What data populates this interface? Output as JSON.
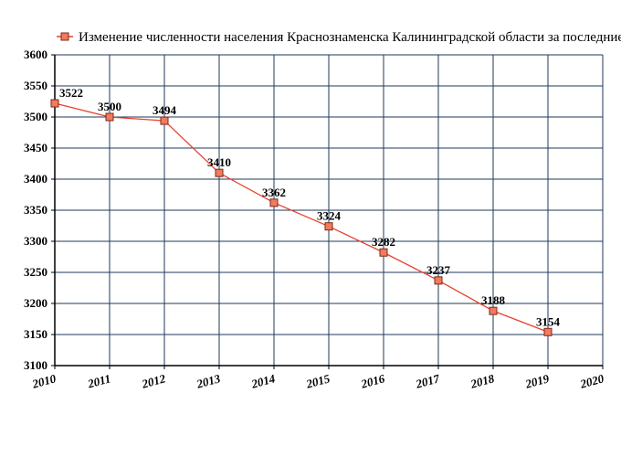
{
  "chart_data": {
    "type": "line",
    "legend": "Изменение численности населения Краснознаменска Калининградской области за последние",
    "legend_position": "top",
    "x": [
      "2010",
      "2011",
      "2012",
      "2013",
      "2014",
      "2015",
      "2016",
      "2017",
      "2018",
      "2019"
    ],
    "series": [
      {
        "name": "Изменение численности населения Краснознаменска Калининградской области за последние",
        "values": [
          3522,
          3500,
          3494,
          3410,
          3362,
          3324,
          3282,
          3237,
          3188,
          3154
        ],
        "labels": [
          "3522",
          "3500",
          "3494",
          "3410",
          "3362",
          "3324",
          "3282",
          "3237",
          "3188",
          "3154"
        ],
        "color": "#e8412c",
        "marker_color": "#f27a5e"
      }
    ],
    "xticks": [
      "2010",
      "2011",
      "2012",
      "2013",
      "2014",
      "2015",
      "2016",
      "2017",
      "2018",
      "2019",
      "2020"
    ],
    "xlim": [
      2010,
      2020
    ],
    "yticks": [
      "3100",
      "3150",
      "3200",
      "3250",
      "3300",
      "3350",
      "3400",
      "3450",
      "3500",
      "3550",
      "3600"
    ],
    "ylim": [
      3100,
      3600
    ],
    "grid": true,
    "grid_color": "#1f3a5a"
  }
}
